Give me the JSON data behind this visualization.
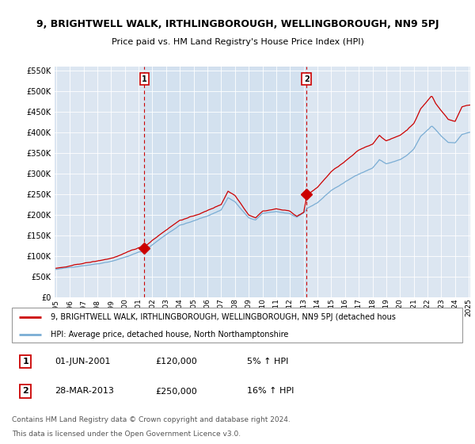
{
  "title": "9, BRIGHTWELL WALK, IRTHLINGBOROUGH, WELLINGBOROUGH, NN9 5PJ",
  "subtitle": "Price paid vs. HM Land Registry's House Price Index (HPI)",
  "legend_line1": "9, BRIGHTWELL WALK, IRTHLINGBOROUGH, WELLINGBOROUGH, NN9 5PJ (detached hous",
  "legend_line2": "HPI: Average price, detached house, North Northamptonshire",
  "footnote1": "Contains HM Land Registry data © Crown copyright and database right 2024.",
  "footnote2": "This data is licensed under the Open Government Licence v3.0.",
  "annotation1": {
    "num": "1",
    "date": "01-JUN-2001",
    "price": "£120,000",
    "hpi": "5% ↑ HPI"
  },
  "annotation2": {
    "num": "2",
    "date": "28-MAR-2013",
    "price": "£250,000",
    "hpi": "16% ↑ HPI"
  },
  "sale1_year": 2001.42,
  "sale1_price": 120000,
  "sale2_year": 2013.21,
  "sale2_price": 250000,
  "hpi_color": "#7aadd4",
  "price_color": "#cc0000",
  "dashed_color": "#cc0000",
  "background_color": "#dce6f1",
  "plot_bg_color": "#dce6f1",
  "shade_color": "#c5d8ec",
  "ylim": [
    0,
    560000
  ],
  "yticks": [
    0,
    50000,
    100000,
    150000,
    200000,
    250000,
    300000,
    350000,
    400000,
    450000,
    500000,
    550000
  ],
  "xstart": 1995,
  "xend": 2025
}
